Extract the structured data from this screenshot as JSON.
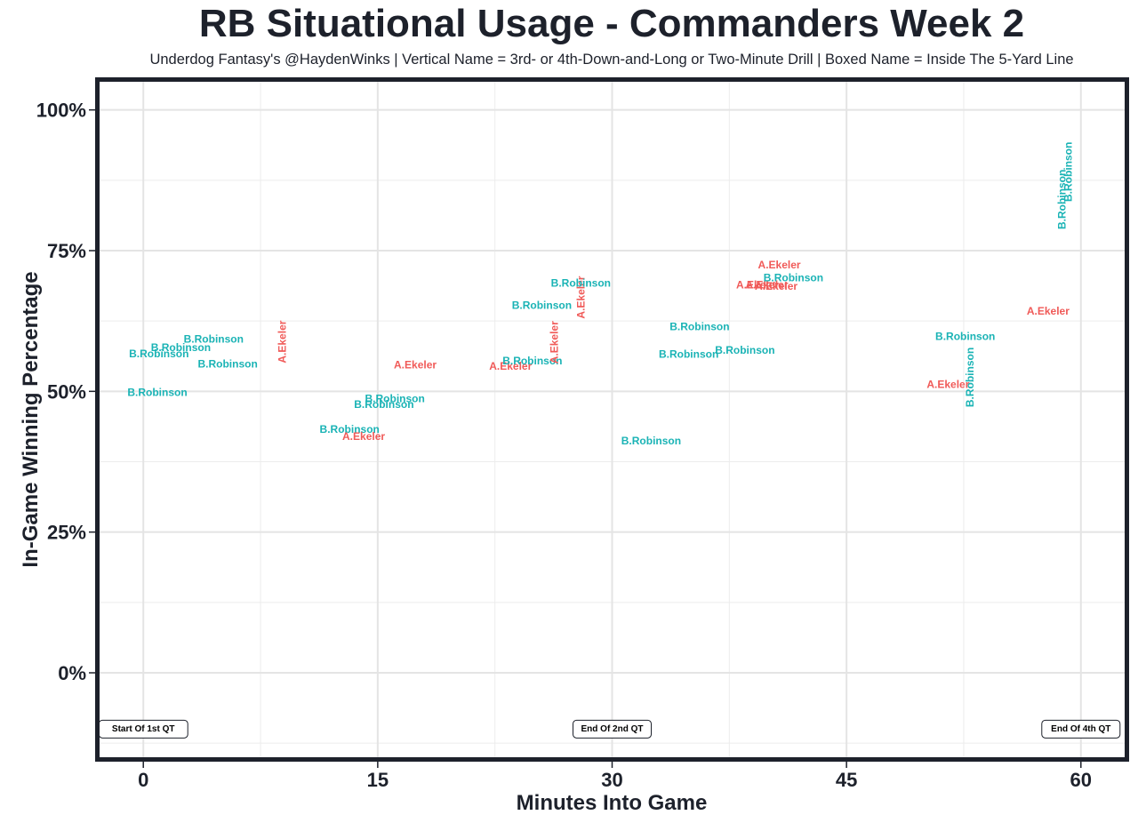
{
  "chart_data": {
    "type": "scatter",
    "title": "RB Situational Usage - Commanders Week 2",
    "subtitle": "Underdog Fantasy's @HaydenWinks | Vertical Name = 3rd- or 4th-Down-and-Long or Two-Minute Drill | Boxed Name = Inside The 5-Yard Line",
    "xlabel": "Minutes Into Game",
    "ylabel": "In-Game Winning Percentage",
    "xlim": [
      -2.8,
      62.8
    ],
    "ylim": [
      -15,
      105
    ],
    "x_ticks": [
      0,
      15,
      30,
      45,
      60
    ],
    "x_tick_labels": [
      "0",
      "15",
      "30",
      "45",
      "60"
    ],
    "x_minor_ticks": [
      7.5,
      22.5,
      37.5,
      52.5
    ],
    "y_ticks": [
      0,
      25,
      50,
      75,
      100
    ],
    "y_tick_labels": [
      "0%",
      "25%",
      "50%",
      "75%",
      "100%"
    ],
    "y_minor_ticks": [
      -12.5,
      12.5,
      37.5,
      62.5,
      87.5
    ],
    "grid": true,
    "colors": {
      "B.Robinson": "#1ab3b5",
      "A.Ekeler": "#f05a58"
    },
    "legend": "none",
    "points": [
      {
        "x": 0.9,
        "y": 49.8,
        "label": "B.Robinson",
        "vertical": false
      },
      {
        "x": 1.0,
        "y": 56.7,
        "label": "B.Robinson",
        "vertical": false
      },
      {
        "x": 2.4,
        "y": 57.8,
        "label": "B.Robinson",
        "vertical": false
      },
      {
        "x": 4.5,
        "y": 59.3,
        "label": "B.Robinson",
        "vertical": false
      },
      {
        "x": 5.4,
        "y": 54.9,
        "label": "B.Robinson",
        "vertical": false
      },
      {
        "x": 8.9,
        "y": 58.8,
        "label": "A.Ekeler",
        "vertical": true
      },
      {
        "x": 13.2,
        "y": 43.3,
        "label": "B.Robinson",
        "vertical": false
      },
      {
        "x": 14.1,
        "y": 42.0,
        "label": "A.Ekeler",
        "vertical": false
      },
      {
        "x": 15.4,
        "y": 47.7,
        "label": "B.Robinson",
        "vertical": false
      },
      {
        "x": 16.1,
        "y": 48.7,
        "label": "B.Robinson",
        "vertical": false
      },
      {
        "x": 17.4,
        "y": 54.7,
        "label": "A.Ekeler",
        "vertical": false
      },
      {
        "x": 23.5,
        "y": 54.5,
        "label": "A.Ekeler",
        "vertical": false
      },
      {
        "x": 24.9,
        "y": 55.4,
        "label": "B.Robinson",
        "vertical": false
      },
      {
        "x": 26.3,
        "y": 58.7,
        "label": "A.Ekeler",
        "vertical": true
      },
      {
        "x": 25.5,
        "y": 65.3,
        "label": "B.Robinson",
        "vertical": false
      },
      {
        "x": 28.0,
        "y": 66.7,
        "label": "A.Ekeler",
        "vertical": true
      },
      {
        "x": 28.0,
        "y": 69.2,
        "label": "B.Robinson",
        "vertical": false
      },
      {
        "x": 32.5,
        "y": 41.2,
        "label": "B.Robinson",
        "vertical": false
      },
      {
        "x": 34.9,
        "y": 56.6,
        "label": "B.Robinson",
        "vertical": false
      },
      {
        "x": 35.6,
        "y": 61.5,
        "label": "B.Robinson",
        "vertical": false
      },
      {
        "x": 38.5,
        "y": 57.3,
        "label": "B.Robinson",
        "vertical": false
      },
      {
        "x": 39.3,
        "y": 68.9,
        "label": "A.Ekeler",
        "vertical": false
      },
      {
        "x": 39.9,
        "y": 68.9,
        "label": "A.Ekeler",
        "vertical": false
      },
      {
        "x": 40.5,
        "y": 68.7,
        "label": "A.Ekeler",
        "vertical": false
      },
      {
        "x": 40.7,
        "y": 72.5,
        "label": "A.Ekeler",
        "vertical": false
      },
      {
        "x": 41.6,
        "y": 70.2,
        "label": "B.Robinson",
        "vertical": false
      },
      {
        "x": 51.5,
        "y": 51.2,
        "label": "A.Ekeler",
        "vertical": false
      },
      {
        "x": 52.6,
        "y": 59.8,
        "label": "B.Robinson",
        "vertical": false
      },
      {
        "x": 52.9,
        "y": 52.5,
        "label": "B.Robinson",
        "vertical": true
      },
      {
        "x": 57.9,
        "y": 64.3,
        "label": "A.Ekeler",
        "vertical": false
      },
      {
        "x": 58.8,
        "y": 84.1,
        "label": "B.Robinson",
        "vertical": true
      },
      {
        "x": 59.2,
        "y": 89.0,
        "label": "B.Robinson",
        "vertical": true
      }
    ],
    "annotations": [
      {
        "x": 0,
        "y": -10,
        "label": "Start Of 1st QT"
      },
      {
        "x": 30,
        "y": -10,
        "label": "End Of 2nd QT"
      },
      {
        "x": 60,
        "y": -10,
        "label": "End Of 4th QT"
      }
    ]
  }
}
